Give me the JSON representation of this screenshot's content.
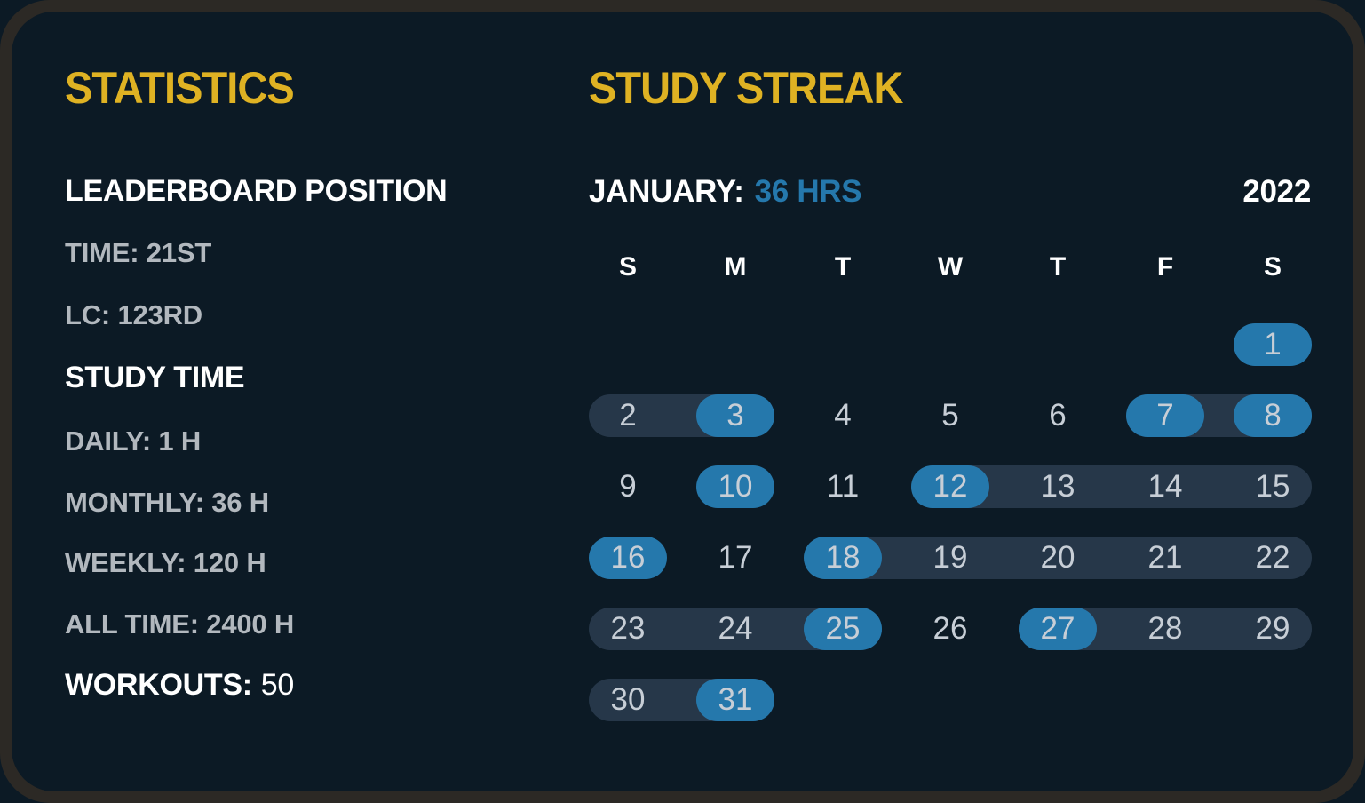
{
  "colors": {
    "bg-navy": "#0c1a25",
    "frame": "#2c2925",
    "card": "#0c1a25",
    "yellow": "#dfb223",
    "blue": "#2578ac",
    "pill": "#263749",
    "white": "#ffffff",
    "gray": "#b2b8be",
    "day-gray": "#c7ced6"
  },
  "statistics": {
    "title": "STATISTICS",
    "leaderboard_heading": "LEADERBOARD POSITION",
    "leaderboard_time": "TIME: 21ST",
    "leaderboard_lc": "LC: 123RD",
    "study_time_heading": "STUDY TIME",
    "daily": "DAILY: 1 H",
    "monthly": "MONTHLY: 36 H",
    "weekly": "WEEKLY: 120 H",
    "all_time": "ALL TIME: 2400 H",
    "workouts_label": "WORKOUTS:",
    "workouts_value": "50"
  },
  "streak": {
    "title": "STUDY STREAK",
    "month_label": "JANUARY:",
    "hours": "36 HRS",
    "year": "2022",
    "weekday_headers": [
      "S",
      "M",
      "T",
      "W",
      "T",
      "F",
      "S"
    ],
    "weeks": [
      {
        "pills": [],
        "days": [
          {
            "n": 1,
            "col": 6,
            "active": true
          }
        ]
      },
      {
        "pills": [
          [
            0,
            1
          ],
          [
            5,
            6
          ]
        ],
        "days": [
          {
            "n": 2,
            "col": 0,
            "active": false
          },
          {
            "n": 3,
            "col": 1,
            "active": true
          },
          {
            "n": 4,
            "col": 2,
            "active": false
          },
          {
            "n": 5,
            "col": 3,
            "active": false
          },
          {
            "n": 6,
            "col": 4,
            "active": false
          },
          {
            "n": 7,
            "col": 5,
            "active": true
          },
          {
            "n": 8,
            "col": 6,
            "active": true
          }
        ]
      },
      {
        "pills": [
          [
            3,
            6
          ]
        ],
        "days": [
          {
            "n": 9,
            "col": 0,
            "active": false
          },
          {
            "n": 10,
            "col": 1,
            "active": true
          },
          {
            "n": 11,
            "col": 2,
            "active": false
          },
          {
            "n": 12,
            "col": 3,
            "active": true
          },
          {
            "n": 13,
            "col": 4,
            "active": false
          },
          {
            "n": 14,
            "col": 5,
            "active": false
          },
          {
            "n": 15,
            "col": 6,
            "active": false
          }
        ]
      },
      {
        "pills": [
          [
            2,
            6
          ]
        ],
        "days": [
          {
            "n": 16,
            "col": 0,
            "active": true
          },
          {
            "n": 17,
            "col": 1,
            "active": false
          },
          {
            "n": 18,
            "col": 2,
            "active": true
          },
          {
            "n": 19,
            "col": 3,
            "active": false
          },
          {
            "n": 20,
            "col": 4,
            "active": false
          },
          {
            "n": 21,
            "col": 5,
            "active": false
          },
          {
            "n": 22,
            "col": 6,
            "active": false
          }
        ]
      },
      {
        "pills": [
          [
            0,
            2
          ],
          [
            4,
            6
          ]
        ],
        "days": [
          {
            "n": 23,
            "col": 0,
            "active": false
          },
          {
            "n": 24,
            "col": 1,
            "active": false
          },
          {
            "n": 25,
            "col": 2,
            "active": true
          },
          {
            "n": 26,
            "col": 3,
            "active": false
          },
          {
            "n": 27,
            "col": 4,
            "active": true
          },
          {
            "n": 28,
            "col": 5,
            "active": false
          },
          {
            "n": 29,
            "col": 6,
            "active": false
          }
        ]
      },
      {
        "pills": [
          [
            0,
            1
          ]
        ],
        "days": [
          {
            "n": 30,
            "col": 0,
            "active": false
          },
          {
            "n": 31,
            "col": 1,
            "active": true
          }
        ]
      }
    ]
  }
}
